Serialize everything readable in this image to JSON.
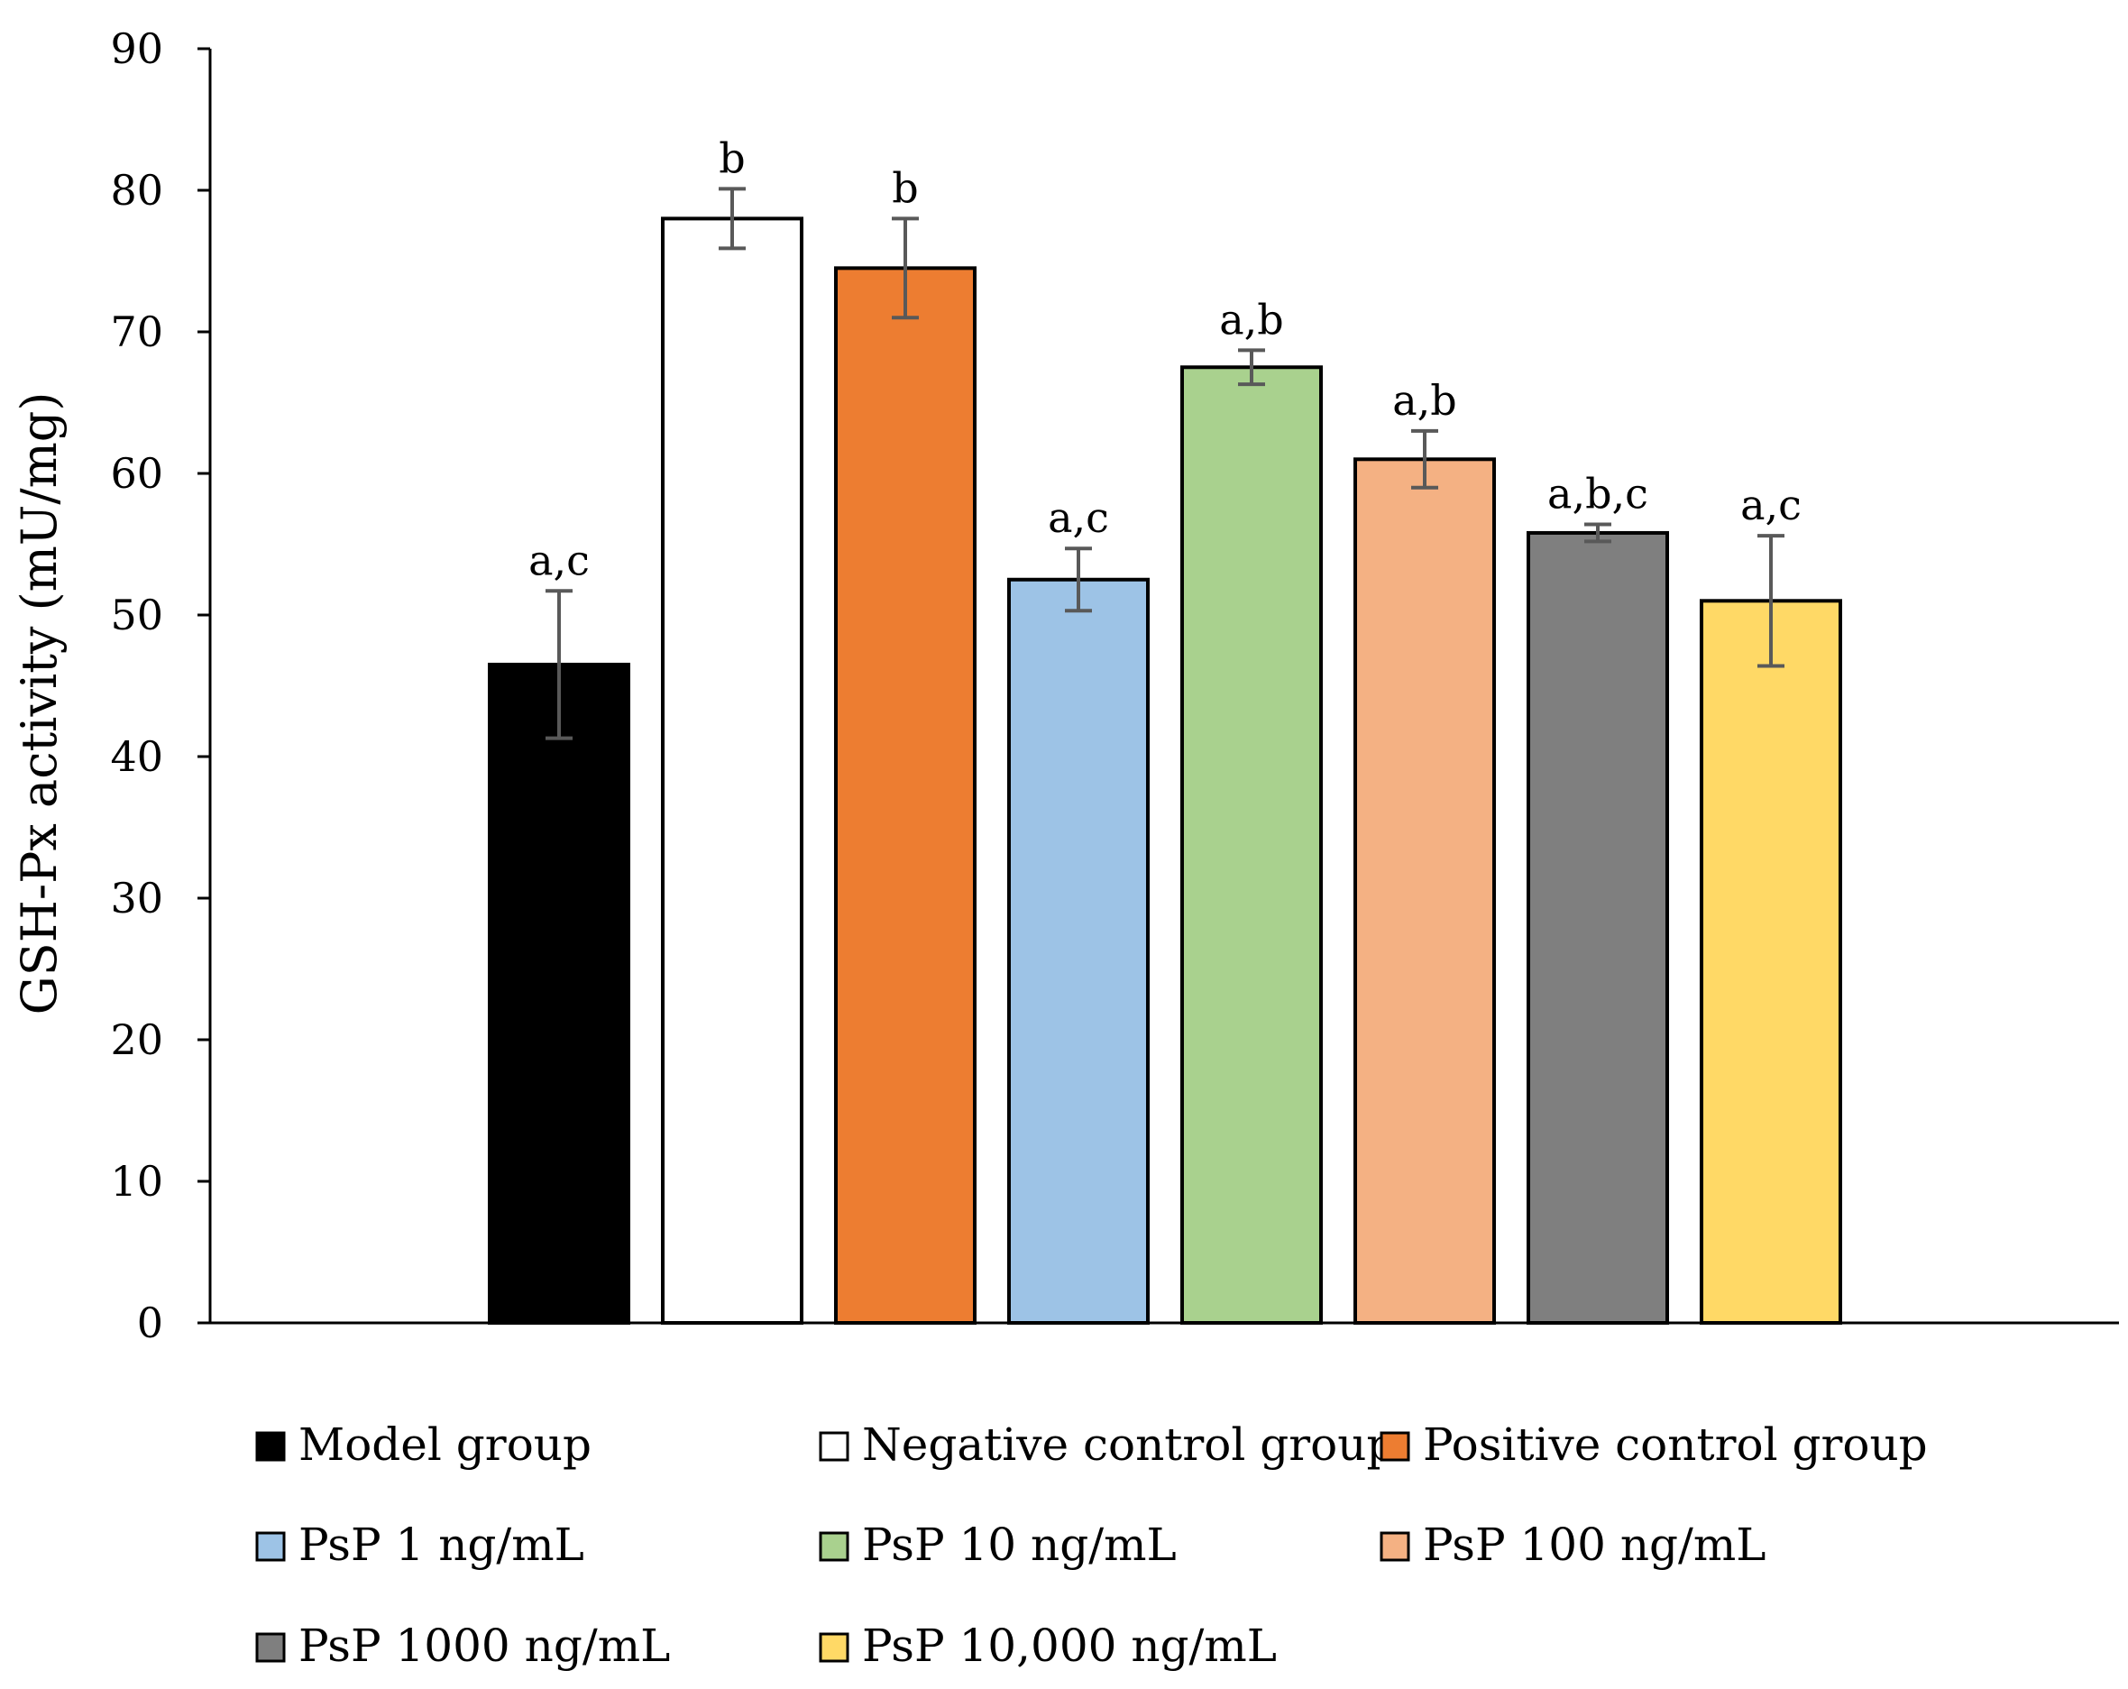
{
  "chart_data": {
    "type": "bar",
    "title": "",
    "xlabel": "",
    "ylabel": "GSH-Px activity  (mU/mg)",
    "ylim": [
      0,
      90
    ],
    "yticks": [
      0,
      10,
      20,
      30,
      40,
      50,
      60,
      70,
      80,
      90
    ],
    "grid": false,
    "legend_position": "bottom",
    "series": [
      {
        "name": "Model group",
        "value": 46.5,
        "error": 5.2,
        "label": "a,c",
        "color": "#000000"
      },
      {
        "name": "Negative control group",
        "value": 78.0,
        "error": 2.1,
        "label": "b",
        "color": "#ffffff"
      },
      {
        "name": "Positive control group",
        "value": 74.5,
        "error": 3.5,
        "label": "b",
        "color": "#ed7d31"
      },
      {
        "name": "PsP 1 ng/mL",
        "value": 52.5,
        "error": 2.2,
        "label": "a,c",
        "color": "#9dc3e6"
      },
      {
        "name": "PsP 10 ng/mL",
        "value": 67.5,
        "error": 1.2,
        "label": "a,b",
        "color": "#a9d18e"
      },
      {
        "name": "PsP 100 ng/mL",
        "value": 61.0,
        "error": 2.0,
        "label": "a,b",
        "color": "#f4b183"
      },
      {
        "name": "PsP 1000 ng/mL",
        "value": 55.8,
        "error": 0.6,
        "label": "a,b,c",
        "color": "#7f7f7f"
      },
      {
        "name": "PsP 10,000 ng/mL",
        "value": 51.0,
        "error": 4.6,
        "label": "a,c",
        "color": "#ffd966"
      }
    ]
  }
}
